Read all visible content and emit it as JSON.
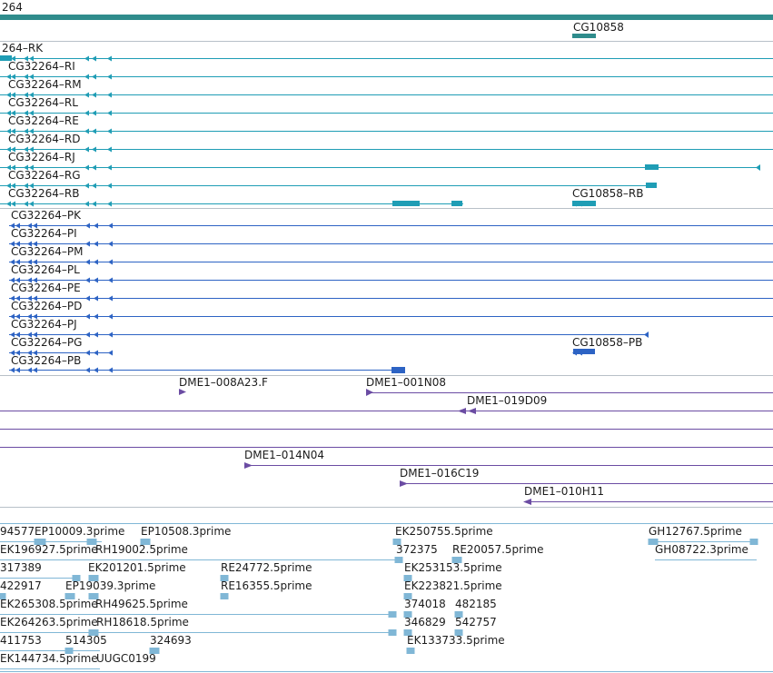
{
  "colors": {
    "gene": "#2f8c8c",
    "transcript": "#1f9db5",
    "protein": "#2d63c4",
    "clone": "#6b4ca3",
    "est": "#80b7d6",
    "separator": "#b8c0c8"
  },
  "tracks": {
    "gene": {
      "header_label": "264",
      "labels": [
        "CG10858"
      ]
    },
    "transcripts": {
      "labels": [
        "264–RK",
        "CG32264–RI",
        "CG32264–RM",
        "CG32264–RL",
        "CG32264–RE",
        "CG32264–RD",
        "CG32264–RJ",
        "CG32264–RG",
        "CG32264–RB",
        "CG10858–RB"
      ]
    },
    "proteins": {
      "labels": [
        "CG32264–PK",
        "CG32264–PI",
        "CG32264–PM",
        "CG32264–PL",
        "CG32264–PE",
        "CG32264–PD",
        "CG32264–PJ",
        "CG32264–PG",
        "CG32264–PB",
        "CG10858–PB"
      ]
    },
    "clones": {
      "labels": [
        "DME1–008A23.F",
        "DME1–001N08",
        "DME1–019D09",
        "DME1–014N04",
        "DME1–016C19",
        "DME1–010H11"
      ]
    },
    "ests": {
      "labels": [
        "94577",
        "EP10009.3prime",
        "EP10508.3prime",
        "EK250755.5prime",
        "GH12767.5prime",
        "EK196927.5prime",
        "RH19002.5prime",
        "372375",
        "RE20057.5prime",
        "GH08722.3prime",
        "317389",
        "EK201201.5prime",
        "RE24772.5prime",
        "EK253153.5prime",
        "422917",
        "EP19039.3prime",
        "RE16355.5prime",
        "EK223821.5prime",
        "EK265308.5prime",
        "RH49625.5prime",
        "374018",
        "482185",
        "EK264263.5prime",
        "RH18618.5prime",
        "346829",
        "542757",
        "411753",
        "514305",
        "324693",
        "EK133733.5prime",
        "EK144734.5prime",
        "UUGC0199"
      ]
    }
  }
}
